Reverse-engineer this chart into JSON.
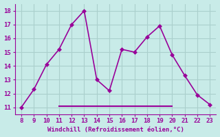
{
  "x": [
    8,
    9,
    10,
    11,
    12,
    13,
    14,
    15,
    16,
    17,
    18,
    19,
    20,
    21,
    22,
    23
  ],
  "y": [
    11,
    12.3,
    14.1,
    15.2,
    17.0,
    18.0,
    13.0,
    12.2,
    15.2,
    15.0,
    16.1,
    16.9,
    14.8,
    13.3,
    11.9,
    11.2
  ],
  "y2_const": 11.1,
  "x2_start": 11,
  "x2_end": 20,
  "xlim": [
    7.5,
    23.5
  ],
  "ylim": [
    10.5,
    18.5
  ],
  "xticks": [
    8,
    9,
    10,
    11,
    12,
    13,
    14,
    15,
    16,
    17,
    18,
    19,
    20,
    21,
    22,
    23
  ],
  "yticks": [
    11,
    12,
    13,
    14,
    15,
    16,
    17,
    18
  ],
  "line_color": "#990099",
  "bg_color": "#C8EBE8",
  "grid_color": "#AACFCC",
  "xlabel": "Windchill (Refroidissement éolien,°C)",
  "xlabel_color": "#990099",
  "tick_color": "#990099",
  "border_color": "#990099",
  "marker": "D",
  "markersize": 3,
  "linewidth": 1.2
}
